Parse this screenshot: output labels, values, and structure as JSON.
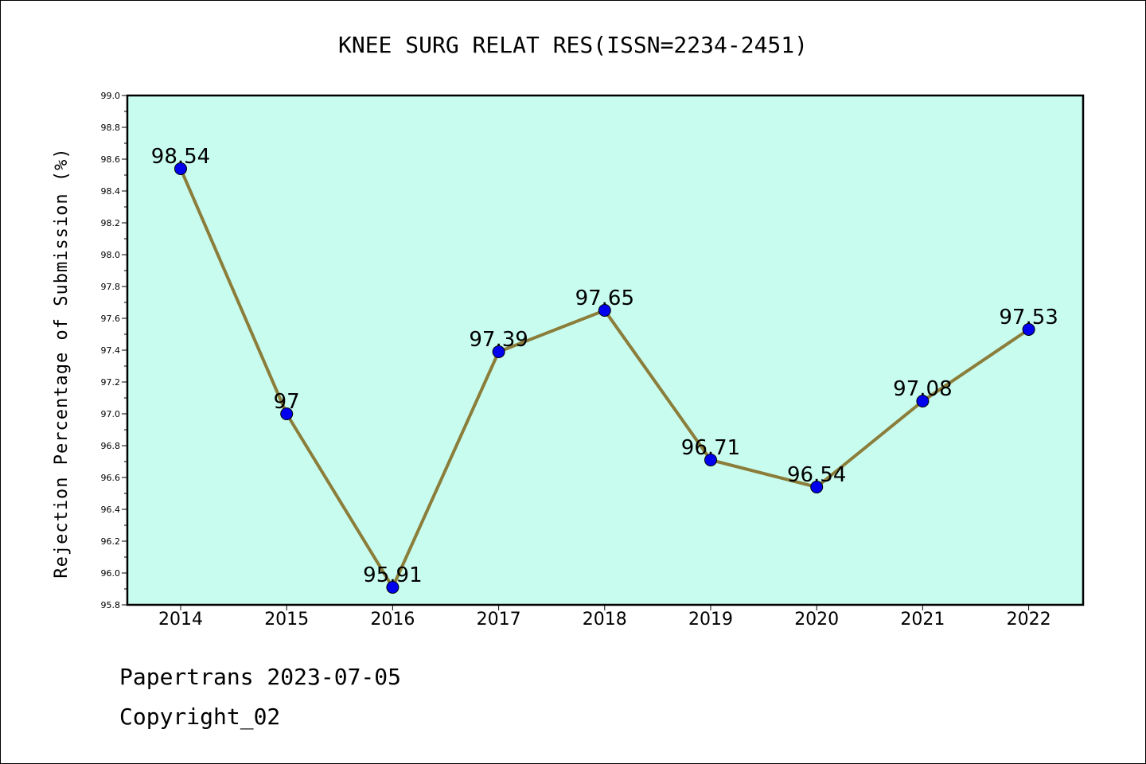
{
  "chart_data": {
    "type": "line",
    "title": "KNEE SURG RELAT RES(ISSN=2234-2451)",
    "ylabel": "Rejection Percentage of Submission (%)",
    "xlabel": "",
    "categories": [
      "2014",
      "2015",
      "2016",
      "2017",
      "2018",
      "2019",
      "2020",
      "2021",
      "2022"
    ],
    "values": [
      98.54,
      97,
      95.91,
      97.39,
      97.65,
      96.71,
      96.54,
      97.08,
      97.53
    ],
    "value_labels": [
      "98.54",
      "97",
      "95.91",
      "97.39",
      "97.65",
      "96.71",
      "96.54",
      "97.08",
      "97.53"
    ],
    "ylim": [
      95.8,
      99.0
    ],
    "yticks": [
      "95.8",
      "96.0",
      "96.2",
      "96.4",
      "96.6",
      "96.8",
      "97.0",
      "97.2",
      "97.4",
      "97.6",
      "97.8",
      "98.0",
      "98.2",
      "98.4",
      "98.6",
      "98.8",
      "99.0"
    ],
    "grid": false,
    "colors": {
      "plot_background": "#c8fcee",
      "line": "#8b7d3a",
      "marker": "#0000ee"
    }
  },
  "footer": {
    "line1": "Papertrans 2023-07-05",
    "line2": "Copyright_02"
  }
}
